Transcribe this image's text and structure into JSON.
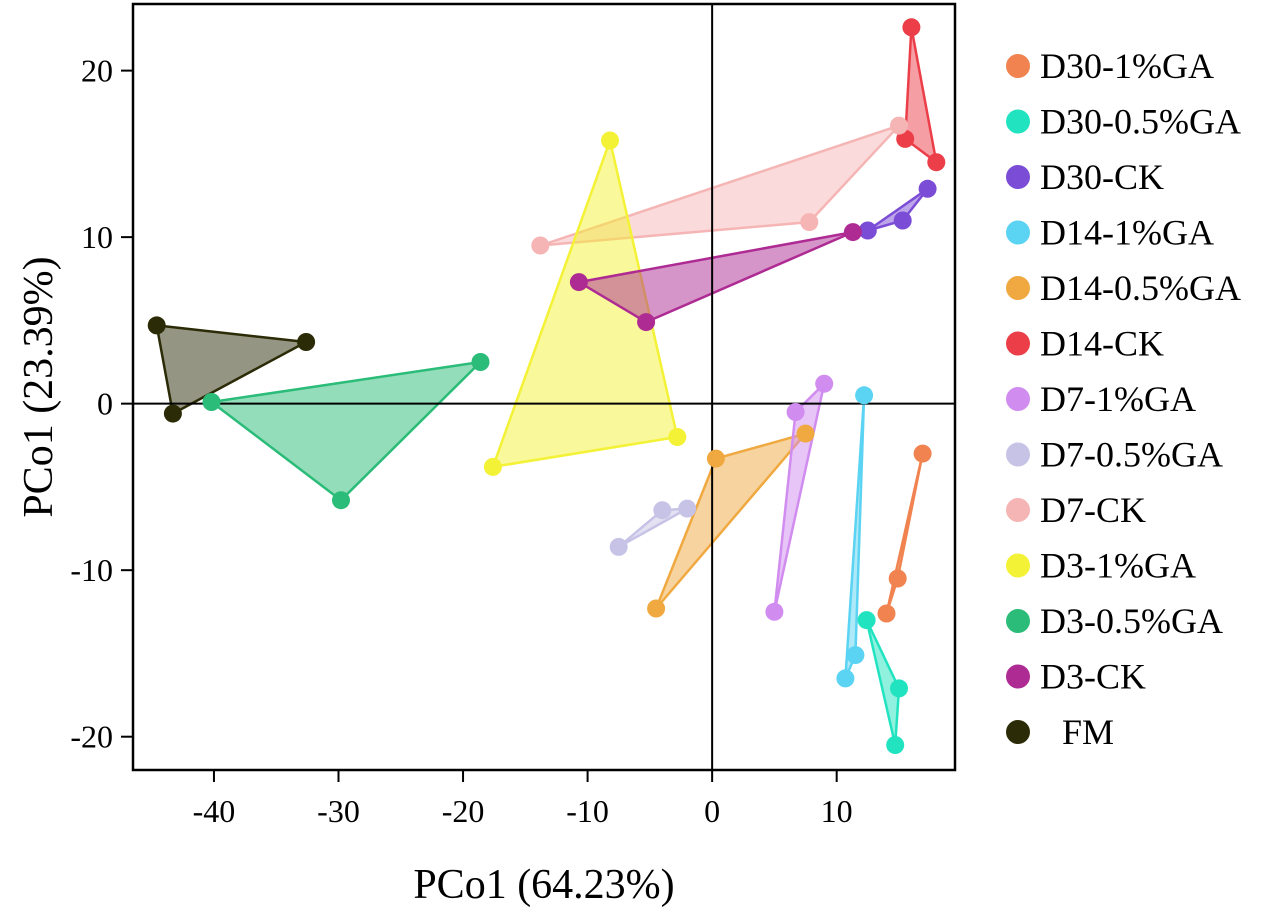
{
  "chart_data": {
    "type": "scatter",
    "title": "",
    "xlabel": "PCo1 (64.23%)",
    "ylabel": "PCo1 (23.39%)",
    "xlim": [
      -46.5,
      19.5
    ],
    "ylim": [
      -22,
      24
    ],
    "xticks": [
      -40,
      -30,
      -20,
      -10,
      0,
      10
    ],
    "yticks": [
      20,
      10,
      0,
      -10,
      -20
    ],
    "reference_lines": {
      "x": 0,
      "y": 0
    },
    "grid": false,
    "legend_position": "right-outside",
    "series": [
      {
        "name": "D30-1%GA",
        "color": "#F0834F",
        "points": [
          [
            16.9,
            -3.0
          ],
          [
            14.9,
            -10.5
          ],
          [
            14.0,
            -12.6
          ]
        ]
      },
      {
        "name": "D30-0.5%GA",
        "color": "#22E3C0",
        "points": [
          [
            12.4,
            -13.0
          ],
          [
            15.0,
            -17.1
          ],
          [
            14.7,
            -20.5
          ]
        ]
      },
      {
        "name": "D30-CK",
        "color": "#7B4CD6",
        "points": [
          [
            12.5,
            10.4
          ],
          [
            17.3,
            12.9
          ],
          [
            15.3,
            11.0
          ]
        ]
      },
      {
        "name": "D14-1%GA",
        "color": "#5BD3F2",
        "points": [
          [
            12.2,
            0.5
          ],
          [
            11.5,
            -15.1
          ],
          [
            10.7,
            -16.5
          ]
        ]
      },
      {
        "name": "D14-0.5%GA",
        "color": "#F0A940",
        "points": [
          [
            0.3,
            -3.3
          ],
          [
            7.5,
            -1.8
          ],
          [
            -4.5,
            -12.3
          ]
        ]
      },
      {
        "name": "D14-CK",
        "color": "#EB3E48",
        "points": [
          [
            16.0,
            22.6
          ],
          [
            18.0,
            14.5
          ],
          [
            15.5,
            15.9
          ]
        ]
      },
      {
        "name": "D7-1%GA",
        "color": "#D18CF0",
        "points": [
          [
            9.0,
            1.2
          ],
          [
            6.7,
            -0.5
          ],
          [
            5.0,
            -12.5
          ]
        ]
      },
      {
        "name": "D7-0.5%GA",
        "color": "#C7C3E6",
        "points": [
          [
            -4.0,
            -6.4
          ],
          [
            -2.0,
            -6.3
          ],
          [
            -7.5,
            -8.6
          ]
        ]
      },
      {
        "name": "D7-CK",
        "color": "#F6B5B5",
        "points": [
          [
            -13.8,
            9.5
          ],
          [
            7.8,
            10.9
          ],
          [
            15.0,
            16.7
          ]
        ]
      },
      {
        "name": "D3-1%GA",
        "color": "#F4F236",
        "points": [
          [
            -8.2,
            15.8
          ],
          [
            -2.8,
            -2.0
          ],
          [
            -17.6,
            -3.8
          ]
        ]
      },
      {
        "name": "D3-0.5%GA",
        "color": "#2ABC78",
        "points": [
          [
            -18.6,
            2.5
          ],
          [
            -40.2,
            0.1
          ],
          [
            -29.8,
            -5.8
          ]
        ]
      },
      {
        "name": "D3-CK",
        "color": "#AE2B93",
        "points": [
          [
            -10.7,
            7.3
          ],
          [
            -5.3,
            4.9
          ],
          [
            11.3,
            10.3
          ]
        ]
      },
      {
        "name": "FM",
        "color": "#2B2B07",
        "points": [
          [
            -44.6,
            4.7
          ],
          [
            -32.6,
            3.7
          ],
          [
            -43.3,
            -0.6
          ]
        ]
      }
    ]
  }
}
